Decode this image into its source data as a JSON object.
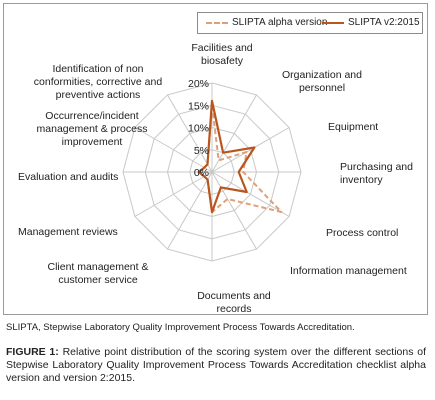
{
  "chart_data": {
    "type": "radar",
    "categories": [
      "Facilities and biosafety",
      "Organization and personnel",
      "Equipment",
      "Purchasing and inventory",
      "Process control",
      "Information management",
      "Documents and records",
      "Client management & customer service",
      "Management reviews",
      "Evaluation and audits",
      "Occurrence/incident management & process improvement",
      "Identification of non conformities, corrective and preventive actions"
    ],
    "label_lines": [
      [
        "Facilities and",
        "biosafety"
      ],
      [
        "Organization and",
        "personnel"
      ],
      [
        "Equipment"
      ],
      [
        "Purchasing and",
        "inventory"
      ],
      [
        "Process control"
      ],
      [
        "Information management"
      ],
      [
        "Documents and",
        "records"
      ],
      [
        "Client management &",
        "customer service"
      ],
      [
        "Management reviews"
      ],
      [
        "Evaluation and audits"
      ],
      [
        "Occurrence/incident",
        "management & process",
        "improvement"
      ],
      [
        "Identification of non",
        "conformities, corrective and",
        "preventive actions"
      ]
    ],
    "ticks": [
      0,
      5,
      10,
      15,
      20
    ],
    "tick_labels": [
      "0%",
      "5%",
      "10%",
      "15%",
      "20%"
    ],
    "rmax": 20,
    "series": [
      {
        "name": "SLIPTA alpha version",
        "values": [
          15,
          3,
          9,
          7,
          18,
          7,
          9,
          2,
          2,
          3,
          2,
          2
        ],
        "color": "#e0a076",
        "dashed": true
      },
      {
        "name": "SLIPTA v2:2015",
        "values": [
          16,
          5,
          11,
          6,
          9,
          4,
          9,
          2,
          2,
          3,
          2,
          2
        ],
        "color": "#b8561e",
        "dashed": false
      }
    ]
  },
  "legend": {
    "alpha": "SLIPTA alpha version",
    "v2": "SLIPTA v2:2015"
  },
  "abbreviation_note": "SLIPTA, Stepwise Laboratory Quality Improvement Process Towards Accreditation.",
  "caption": {
    "label": "FIGURE 1:",
    "text": "Relative point distribution of the scoring system over the different sections of Stepwise Laboratory Quality Improvement Process Towards Accreditation checklist alpha version and version 2:2015."
  }
}
